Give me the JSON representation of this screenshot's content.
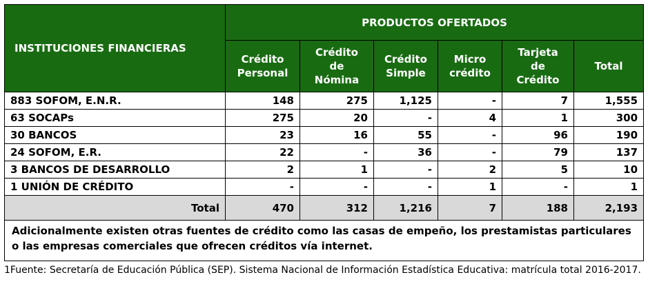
{
  "header": {
    "institutions": "INSTITUCIONES FINANCIERAS",
    "products": "PRODUCTOS OFERTADOS",
    "columns": [
      [
        "Crédito",
        "Personal"
      ],
      [
        "Crédito",
        "de",
        "Nómina"
      ],
      [
        "Crédito",
        "Simple"
      ],
      [
        "Micro",
        "crédito"
      ],
      [
        "Tarjeta",
        "de",
        "Crédito"
      ],
      [
        "Total"
      ]
    ]
  },
  "rows": [
    {
      "name": "883 SOFOM, E.N.R.",
      "values": [
        "148",
        "275",
        "1,125",
        "-",
        "7",
        "1,555"
      ]
    },
    {
      "name": "63 SOCAPs",
      "values": [
        "275",
        "20",
        "-",
        "4",
        "1",
        "300"
      ]
    },
    {
      "name": "30 BANCOS",
      "values": [
        "23",
        "16",
        "55",
        "-",
        "96",
        "190"
      ]
    },
    {
      "name": "24 SOFOM, E.R.",
      "values": [
        "22",
        "-",
        "36",
        "-",
        "79",
        "137"
      ]
    },
    {
      "name": "3 BANCOS DE DESARROLLO",
      "values": [
        "2",
        "1",
        "-",
        "2",
        "5",
        "10"
      ]
    },
    {
      "name": "1 UNIÓN DE CRÉDITO",
      "values": [
        "-",
        "-",
        "-",
        "1",
        "-",
        "1"
      ]
    }
  ],
  "total": {
    "label": "Total",
    "values": [
      "470",
      "312",
      "1,216",
      "7",
      "188",
      "2,193"
    ]
  },
  "note": "Adicionalmente existen otras fuentes de crédito como las casas de empeño, los prestamistas particulares o las empresas comerciales que ofrecen créditos vía internet.",
  "footnote": "1Fuente: Secretaría de Educación Pública (SEP). Sistema Nacional de Información Estadística Educativa: matrícula total 2016-2017."
}
